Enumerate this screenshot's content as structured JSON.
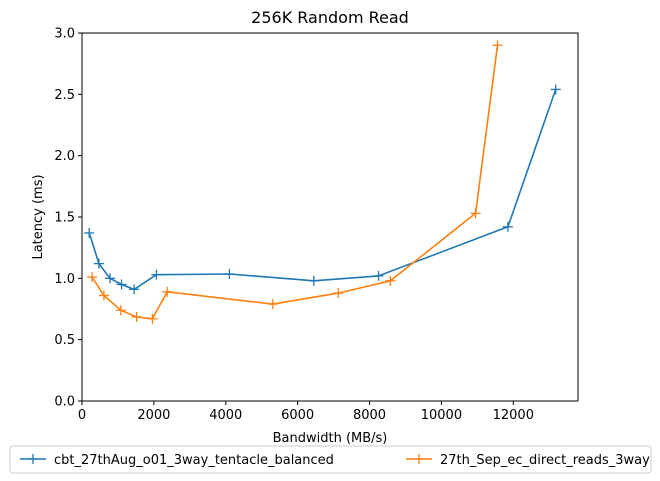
{
  "chart_data": {
    "type": "line",
    "title": "256K  Random Read",
    "xlabel": "Bandwidth (MB/s)",
    "ylabel": "Latency (ms)",
    "xlim": [
      0,
      13800
    ],
    "ylim": [
      0,
      3.0
    ],
    "xticks": [
      0,
      2000,
      4000,
      6000,
      8000,
      10000,
      12000
    ],
    "yticks": [
      0.0,
      0.5,
      1.0,
      1.5,
      2.0,
      2.5,
      3.0
    ],
    "xtick_labels": [
      "0",
      "2000",
      "4000",
      "6000",
      "8000",
      "10000",
      "12000"
    ],
    "ytick_labels": [
      "0.0",
      "0.5",
      "1.0",
      "1.5",
      "2.0",
      "2.5",
      "3.0"
    ],
    "grid": false,
    "legend_position": "below plot, two columns",
    "series": [
      {
        "name": "cbt_27thAug_o01_3way_tentacle_balanced",
        "color": "#1f77b4",
        "marker": "plus",
        "x": [
          200,
          470,
          780,
          1100,
          1450,
          2070,
          4100,
          6450,
          8250,
          11850,
          13180
        ],
        "y": [
          1.37,
          1.12,
          1.0,
          0.95,
          0.91,
          1.03,
          1.035,
          0.98,
          1.02,
          1.42,
          2.54
        ]
      },
      {
        "name": "27th_Sep_ec_direct_reads_3way",
        "color": "#ff7f0e",
        "marker": "plus",
        "x": [
          280,
          610,
          1080,
          1520,
          1960,
          2370,
          5310,
          7130,
          8580,
          10950,
          11560
        ],
        "y": [
          1.01,
          0.86,
          0.74,
          0.685,
          0.67,
          0.89,
          0.79,
          0.88,
          0.98,
          1.53,
          2.9
        ]
      }
    ]
  }
}
